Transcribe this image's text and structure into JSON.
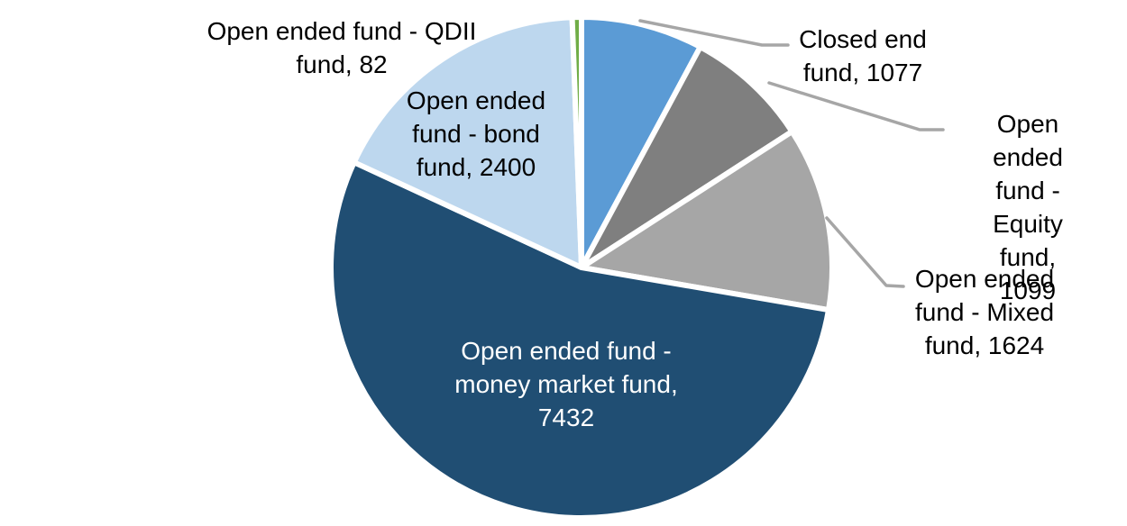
{
  "chart_data": {
    "type": "pie",
    "title": "",
    "legend": "none",
    "background_color": "#FFFFFF",
    "label_text_color": "#000000",
    "inside_label_text_color": "#FFFFFF",
    "leader_line_color": "#A6A6A6",
    "slice_border_color": "#FFFFFF",
    "start_angle_deg": 0,
    "direction": "clockwise",
    "total": 13714,
    "categories": [
      "Closed end fund",
      "Open ended fund - Equity fund",
      "Open ended fund - Mixed fund",
      "Open ended fund - money market fund",
      "Open ended fund - bond fund",
      "Open ended fund - QDII fund"
    ],
    "values": [
      1077,
      1099,
      1624,
      7432,
      2400,
      82
    ],
    "slices": [
      {
        "label": "Closed end fund",
        "value": 1077,
        "color": "#5B9BD5",
        "label_placement": "outside",
        "display": "Closed end\nfund, 1077"
      },
      {
        "label": "Open ended fund - Equity fund",
        "value": 1099,
        "color": "#7F7F7F",
        "label_placement": "outside",
        "display": "Open ended\nfund - Equity\nfund, 1099"
      },
      {
        "label": "Open ended fund - Mixed fund",
        "value": 1624,
        "color": "#A6A6A6",
        "label_placement": "outside",
        "display": "Open ended\nfund - Mixed\nfund, 1624"
      },
      {
        "label": "Open ended fund - money market fund",
        "value": 7432,
        "color": "#204E73",
        "label_placement": "inside",
        "display": "Open ended fund -\nmoney market fund,\n7432"
      },
      {
        "label": "Open ended fund - bond fund",
        "value": 2400,
        "color": "#BDD7EE",
        "label_placement": "inside",
        "display": "Open ended\nfund - bond\nfund, 2400"
      },
      {
        "label": "Open ended fund - QDII fund",
        "value": 82,
        "color": "#70AD47",
        "label_placement": "outside",
        "display": "Open ended fund - QDII\nfund, 82"
      }
    ]
  }
}
